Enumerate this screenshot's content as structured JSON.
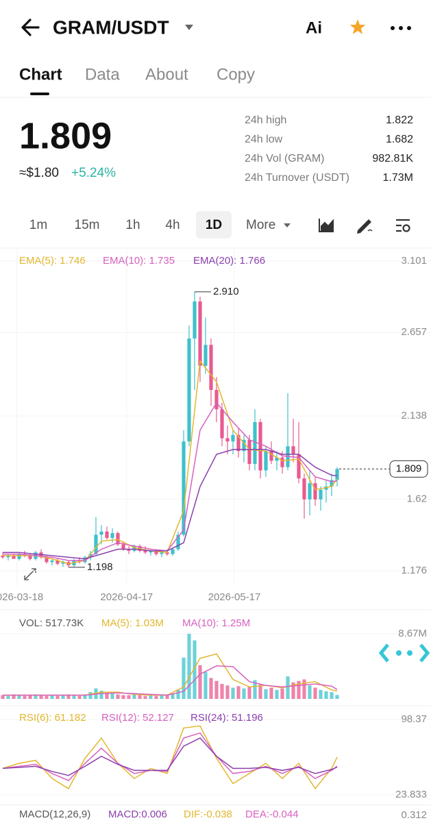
{
  "header": {
    "pair": "GRAM/USDT",
    "ai": "Ai"
  },
  "tabs": [
    "Chart",
    "Data",
    "About",
    "Copy"
  ],
  "price": {
    "last": "1.809",
    "usd": "≈$1.80",
    "change": "+5.24%"
  },
  "stats": [
    {
      "label": "24h high",
      "value": "1.822"
    },
    {
      "label": "24h low",
      "value": "1.682"
    },
    {
      "label": "24h Vol (GRAM)",
      "value": "982.81K"
    },
    {
      "label": "24h Turnover (USDT)",
      "value": "1.73M"
    }
  ],
  "intervals": [
    "1m",
    "15m",
    "1h",
    "4h",
    "1D",
    "More"
  ],
  "chart_data": [
    {
      "type": "candlestick",
      "up_color": "#3ec1cc",
      "down_color": "#e85a8f",
      "x": [
        0,
        1,
        2,
        3,
        4,
        5,
        6,
        7,
        8,
        9,
        10,
        11,
        12,
        13,
        14,
        15,
        16,
        17,
        18,
        19,
        20,
        21,
        22,
        23,
        24,
        25,
        26,
        27,
        28,
        29,
        30,
        31,
        32,
        33,
        34,
        35,
        36,
        37,
        38,
        39,
        40,
        41,
        42,
        43,
        44,
        45,
        46,
        47,
        48,
        49,
        50,
        51,
        52,
        53,
        54,
        55,
        56,
        57,
        58,
        59,
        60,
        61
      ],
      "open": [
        1.27,
        1.26,
        1.27,
        1.25,
        1.28,
        1.27,
        1.25,
        1.29,
        1.26,
        1.23,
        1.24,
        1.22,
        1.23,
        1.21,
        1.24,
        1.23,
        1.26,
        1.28,
        1.4,
        1.42,
        1.38,
        1.41,
        1.34,
        1.31,
        1.3,
        1.33,
        1.3,
        1.29,
        1.3,
        1.28,
        1.29,
        1.28,
        1.31,
        1.4,
        1.98,
        2.62,
        2.85,
        2.45,
        2.58,
        2.3,
        2.18,
        2.0,
        1.98,
        2.02,
        1.92,
        1.99,
        1.84,
        2.1,
        1.8,
        1.92,
        1.86,
        1.88,
        1.82,
        1.95,
        1.9,
        1.75,
        1.62,
        1.72,
        1.62,
        1.68,
        1.7,
        1.74
      ],
      "high": [
        1.29,
        1.28,
        1.28,
        1.29,
        1.3,
        1.28,
        1.3,
        1.31,
        1.27,
        1.25,
        1.25,
        1.24,
        1.24,
        1.25,
        1.26,
        1.27,
        1.3,
        1.51,
        1.46,
        1.45,
        1.44,
        1.42,
        1.36,
        1.33,
        1.34,
        1.34,
        1.33,
        1.31,
        1.31,
        1.3,
        1.31,
        1.32,
        1.42,
        2.05,
        2.7,
        2.91,
        2.88,
        2.75,
        2.62,
        2.38,
        2.22,
        2.08,
        2.05,
        2.06,
        2.02,
        2.02,
        2.18,
        2.12,
        1.95,
        1.98,
        1.92,
        1.92,
        2.28,
        2.12,
        2.1,
        1.78,
        1.8,
        1.76,
        1.7,
        1.74,
        1.78,
        1.82
      ],
      "low": [
        1.25,
        1.24,
        1.25,
        1.24,
        1.26,
        1.24,
        1.24,
        1.25,
        1.22,
        1.21,
        1.21,
        1.2,
        1.198,
        1.2,
        1.22,
        1.22,
        1.24,
        1.27,
        1.34,
        1.37,
        1.35,
        1.33,
        1.3,
        1.28,
        1.29,
        1.29,
        1.28,
        1.27,
        1.27,
        1.26,
        1.27,
        1.27,
        1.3,
        1.39,
        1.95,
        2.3,
        2.35,
        2.4,
        2.2,
        2.1,
        1.95,
        1.9,
        1.9,
        1.88,
        1.85,
        1.8,
        1.8,
        1.75,
        1.76,
        1.84,
        1.8,
        1.78,
        1.8,
        1.85,
        1.72,
        1.5,
        1.52,
        1.58,
        1.55,
        1.6,
        1.64,
        1.7
      ],
      "close": [
        1.26,
        1.27,
        1.25,
        1.28,
        1.27,
        1.25,
        1.29,
        1.26,
        1.23,
        1.24,
        1.22,
        1.23,
        1.21,
        1.24,
        1.23,
        1.26,
        1.28,
        1.4,
        1.42,
        1.38,
        1.41,
        1.34,
        1.31,
        1.3,
        1.33,
        1.3,
        1.29,
        1.3,
        1.28,
        1.29,
        1.28,
        1.31,
        1.4,
        1.98,
        2.62,
        2.85,
        2.45,
        2.58,
        2.3,
        2.18,
        2.0,
        1.98,
        2.02,
        1.92,
        1.99,
        1.84,
        2.1,
        1.8,
        1.92,
        1.86,
        1.88,
        1.82,
        1.95,
        1.9,
        1.75,
        1.62,
        1.72,
        1.62,
        1.68,
        1.7,
        1.74,
        1.809
      ],
      "series": [
        {
          "name": "EMA(5): 1.746",
          "color": "#e2b62c",
          "x": [
            0,
            3,
            6,
            9,
            12,
            15,
            18,
            21,
            24,
            27,
            30,
            33,
            36,
            39,
            42,
            45,
            48,
            51,
            54,
            57,
            60,
            61
          ],
          "values": [
            1.27,
            1.27,
            1.27,
            1.25,
            1.22,
            1.24,
            1.36,
            1.37,
            1.32,
            1.3,
            1.29,
            1.55,
            2.48,
            2.35,
            2.05,
            1.93,
            1.92,
            1.86,
            1.87,
            1.68,
            1.7,
            1.746
          ]
        },
        {
          "name": "EMA(10): 1.735",
          "color": "#d760bf",
          "x": [
            0,
            3,
            6,
            9,
            12,
            15,
            18,
            21,
            24,
            27,
            30,
            33,
            36,
            39,
            42,
            45,
            48,
            51,
            54,
            57,
            60,
            61
          ],
          "values": [
            1.28,
            1.28,
            1.27,
            1.26,
            1.24,
            1.24,
            1.31,
            1.35,
            1.33,
            1.31,
            1.3,
            1.43,
            2.05,
            2.22,
            2.1,
            1.99,
            1.95,
            1.89,
            1.88,
            1.76,
            1.73,
            1.735
          ]
        },
        {
          "name": "EMA(20): 1.766",
          "color": "#8b3fae",
          "x": [
            0,
            3,
            6,
            9,
            12,
            15,
            18,
            21,
            24,
            27,
            30,
            33,
            36,
            39,
            42,
            45,
            48,
            51,
            54,
            57,
            60,
            61
          ],
          "values": [
            1.29,
            1.29,
            1.28,
            1.27,
            1.26,
            1.25,
            1.28,
            1.31,
            1.31,
            1.3,
            1.3,
            1.35,
            1.7,
            1.9,
            1.93,
            1.93,
            1.93,
            1.9,
            1.9,
            1.82,
            1.77,
            1.766
          ]
        }
      ],
      "xlim": [
        -0.5,
        78.125
      ],
      "ylim": [
        1.176,
        3.101
      ],
      "yticks": [
        3.101,
        2.657,
        2.138,
        1.62,
        1.176
      ],
      "xticks": [
        {
          "value": 2.6,
          "label": "2026-03-18"
        },
        {
          "value": 22.6,
          "label": "2026-04-17"
        },
        {
          "value": 42.25,
          "label": "2026-05-17"
        }
      ],
      "grid": true,
      "annotations": [
        {
          "label": "2.910",
          "x": 35,
          "y": 2.91
        },
        {
          "label": "1.198",
          "x": 12,
          "y": 1.198
        },
        {
          "label": "1.809",
          "x": 61,
          "y": 1.809
        }
      ]
    },
    {
      "type": "bar",
      "title": "VOL: 517.73K",
      "up_color": "#3ec1cc",
      "down_color": "#e85a8f",
      "values": [
        0.5,
        0.4,
        0.6,
        0.5,
        0.4,
        0.5,
        0.6,
        0.5,
        0.4,
        0.5,
        0.4,
        0.5,
        0.6,
        0.5,
        0.4,
        0.6,
        0.9,
        1.4,
        1.1,
        0.8,
        0.7,
        0.6,
        0.5,
        0.5,
        0.6,
        0.5,
        0.4,
        0.5,
        0.4,
        0.5,
        0.6,
        0.7,
        1.2,
        5.5,
        8.67,
        7.8,
        4.5,
        3.6,
        2.8,
        2.4,
        2.0,
        1.8,
        1.5,
        1.7,
        1.4,
        1.6,
        2.5,
        1.9,
        1.3,
        1.5,
        1.2,
        1.4,
        3.0,
        2.2,
        2.4,
        2.6,
        1.8,
        1.5,
        1.2,
        1.0,
        0.9,
        0.52
      ],
      "series": [
        {
          "name": "MA(5): 1.03M",
          "color": "#e2b62c",
          "x": [
            0,
            3,
            6,
            9,
            12,
            15,
            18,
            21,
            24,
            27,
            30,
            33,
            36,
            39,
            42,
            45,
            48,
            51,
            54,
            57,
            60,
            61
          ],
          "values": [
            0.5,
            0.5,
            0.5,
            0.5,
            0.5,
            0.5,
            0.9,
            0.9,
            0.6,
            0.5,
            0.5,
            1.6,
            5.4,
            6.0,
            2.6,
            1.6,
            1.8,
            1.5,
            2.0,
            2.3,
            1.2,
            1.03
          ]
        },
        {
          "name": "MA(10): 1.25M",
          "color": "#d760bf",
          "x": [
            0,
            3,
            6,
            9,
            12,
            15,
            18,
            21,
            24,
            27,
            30,
            33,
            36,
            39,
            42,
            45,
            48,
            51,
            54,
            57,
            60,
            61
          ],
          "values": [
            0.5,
            0.5,
            0.5,
            0.5,
            0.5,
            0.5,
            0.7,
            0.8,
            0.7,
            0.6,
            0.5,
            1.0,
            3.3,
            4.4,
            4.3,
            2.3,
            1.8,
            1.6,
            1.8,
            2.0,
            1.7,
            1.25
          ]
        }
      ],
      "xlim": [
        -0.5,
        78.125
      ],
      "ylim": [
        0,
        8.67
      ],
      "yticks": [
        {
          "value": 8.67,
          "label": "8.67M"
        }
      ]
    },
    {
      "type": "line",
      "series": [
        {
          "name": "RSI(6): 61.182",
          "color": "#e2b62c",
          "x": [
            0,
            3,
            6,
            9,
            12,
            15,
            18,
            21,
            24,
            27,
            30,
            33,
            36,
            39,
            42,
            45,
            48,
            51,
            54,
            57,
            60,
            61
          ],
          "values": [
            50,
            55,
            58,
            40,
            30,
            60,
            80,
            55,
            40,
            50,
            45,
            90,
            92,
            60,
            35,
            45,
            55,
            40,
            55,
            30,
            50,
            61.182
          ]
        },
        {
          "name": "RSI(12): 52.127",
          "color": "#d760bf",
          "x": [
            0,
            3,
            6,
            9,
            12,
            15,
            18,
            21,
            24,
            27,
            30,
            33,
            36,
            39,
            42,
            45,
            48,
            51,
            54,
            57,
            60,
            61
          ],
          "values": [
            50,
            52,
            54,
            45,
            38,
            55,
            70,
            55,
            45,
            48,
            47,
            80,
            85,
            62,
            45,
            47,
            52,
            45,
            52,
            40,
            48,
            52.127
          ]
        },
        {
          "name": "RSI(24): 51.196",
          "color": "#8b3fae",
          "x": [
            0,
            3,
            6,
            9,
            12,
            15,
            18,
            21,
            24,
            27,
            30,
            33,
            36,
            39,
            42,
            45,
            48,
            51,
            54,
            57,
            60,
            61
          ],
          "values": [
            50,
            51,
            52,
            47,
            43,
            52,
            62,
            54,
            48,
            48,
            48,
            72,
            80,
            62,
            50,
            50,
            51,
            48,
            51,
            45,
            49,
            51.196
          ]
        }
      ],
      "xlim": [
        -0.5,
        78.125
      ],
      "ylim": [
        23.833,
        98.37
      ],
      "yticks": [
        98.37,
        23.833
      ]
    }
  ],
  "macd_legend": {
    "title": "MACD(12,26,9)",
    "entries": [
      {
        "text": "MACD:0.006",
        "color": "#8b3fae"
      },
      {
        "text": "DIF:-0.038",
        "color": "#e2b62c"
      },
      {
        "text": "DEA:-0.044",
        "color": "#d760bf"
      }
    ],
    "axis_top": "0.312"
  }
}
